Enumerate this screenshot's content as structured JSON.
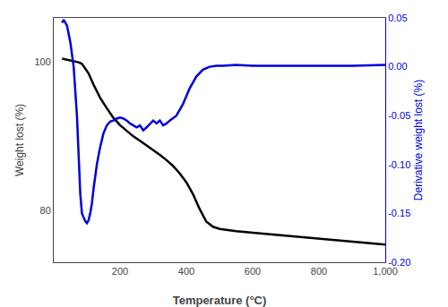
{
  "chart_data": {
    "type": "line",
    "xlabel": "Temperature (°C)",
    "ylabel": "Weight lost (%)",
    "y2label": "Derivative weight lost (%)",
    "xlim": [
      0,
      1000
    ],
    "xticks": [
      200,
      400,
      600,
      800,
      {
        "value": 1000,
        "label": "1,000"
      }
    ],
    "ylim": [
      73,
      106
    ],
    "yticks": [
      80,
      100
    ],
    "y2lim": [
      -0.2,
      0.05
    ],
    "y2ticks": [
      {
        "value": -0.2,
        "label": "-0.20"
      },
      -0.15,
      {
        "value": -0.1,
        "label": "-0.10"
      },
      -0.05,
      {
        "value": 0.0,
        "label": "0.00"
      },
      0.05
    ],
    "grid": false,
    "series": [
      {
        "color": "#000000",
        "x": [
          25,
          35,
          45,
          55,
          65,
          75,
          85,
          95,
          105,
          120,
          140,
          160,
          180,
          200,
          220,
          240,
          260,
          280,
          300,
          320,
          340,
          360,
          380,
          400,
          420,
          440,
          460,
          480,
          500,
          550,
          600,
          650,
          700,
          750,
          800,
          850,
          900,
          950,
          1000
        ],
        "values": [
          100.5,
          100.4,
          100.3,
          100.2,
          100.1,
          100.0,
          99.8,
          99.2,
          98.5,
          97.0,
          95.2,
          93.8,
          92.5,
          91.5,
          90.7,
          90.0,
          89.4,
          88.8,
          88.2,
          87.5,
          86.8,
          86.0,
          85.0,
          83.8,
          82.2,
          80.2,
          78.5,
          77.8,
          77.5,
          77.2,
          77.0,
          76.8,
          76.6,
          76.4,
          76.2,
          76.0,
          75.8,
          75.6,
          75.4
        ]
      },
      {
        "color": "#0000dd",
        "axis": "y2",
        "x": [
          25,
          30,
          40,
          50,
          60,
          70,
          75,
          80,
          85,
          90,
          95,
          100,
          105,
          110,
          115,
          120,
          130,
          140,
          150,
          160,
          170,
          180,
          190,
          200,
          210,
          220,
          230,
          240,
          250,
          260,
          270,
          280,
          290,
          300,
          310,
          320,
          330,
          340,
          350,
          370,
          390,
          410,
          430,
          450,
          470,
          490,
          510,
          550,
          600,
          700,
          800,
          900,
          1000
        ],
        "values": [
          0.045,
          0.048,
          0.042,
          0.025,
          0.0,
          -0.05,
          -0.09,
          -0.13,
          -0.15,
          -0.155,
          -0.158,
          -0.16,
          -0.157,
          -0.15,
          -0.14,
          -0.125,
          -0.1,
          -0.082,
          -0.068,
          -0.06,
          -0.056,
          -0.055,
          -0.053,
          -0.052,
          -0.053,
          -0.055,
          -0.058,
          -0.06,
          -0.062,
          -0.06,
          -0.065,
          -0.062,
          -0.058,
          -0.055,
          -0.058,
          -0.055,
          -0.06,
          -0.058,
          -0.055,
          -0.05,
          -0.038,
          -0.022,
          -0.01,
          -0.003,
          0.0,
          0.001,
          0.001,
          0.002,
          0.001,
          0.001,
          0.001,
          0.001,
          0.002
        ]
      }
    ]
  }
}
